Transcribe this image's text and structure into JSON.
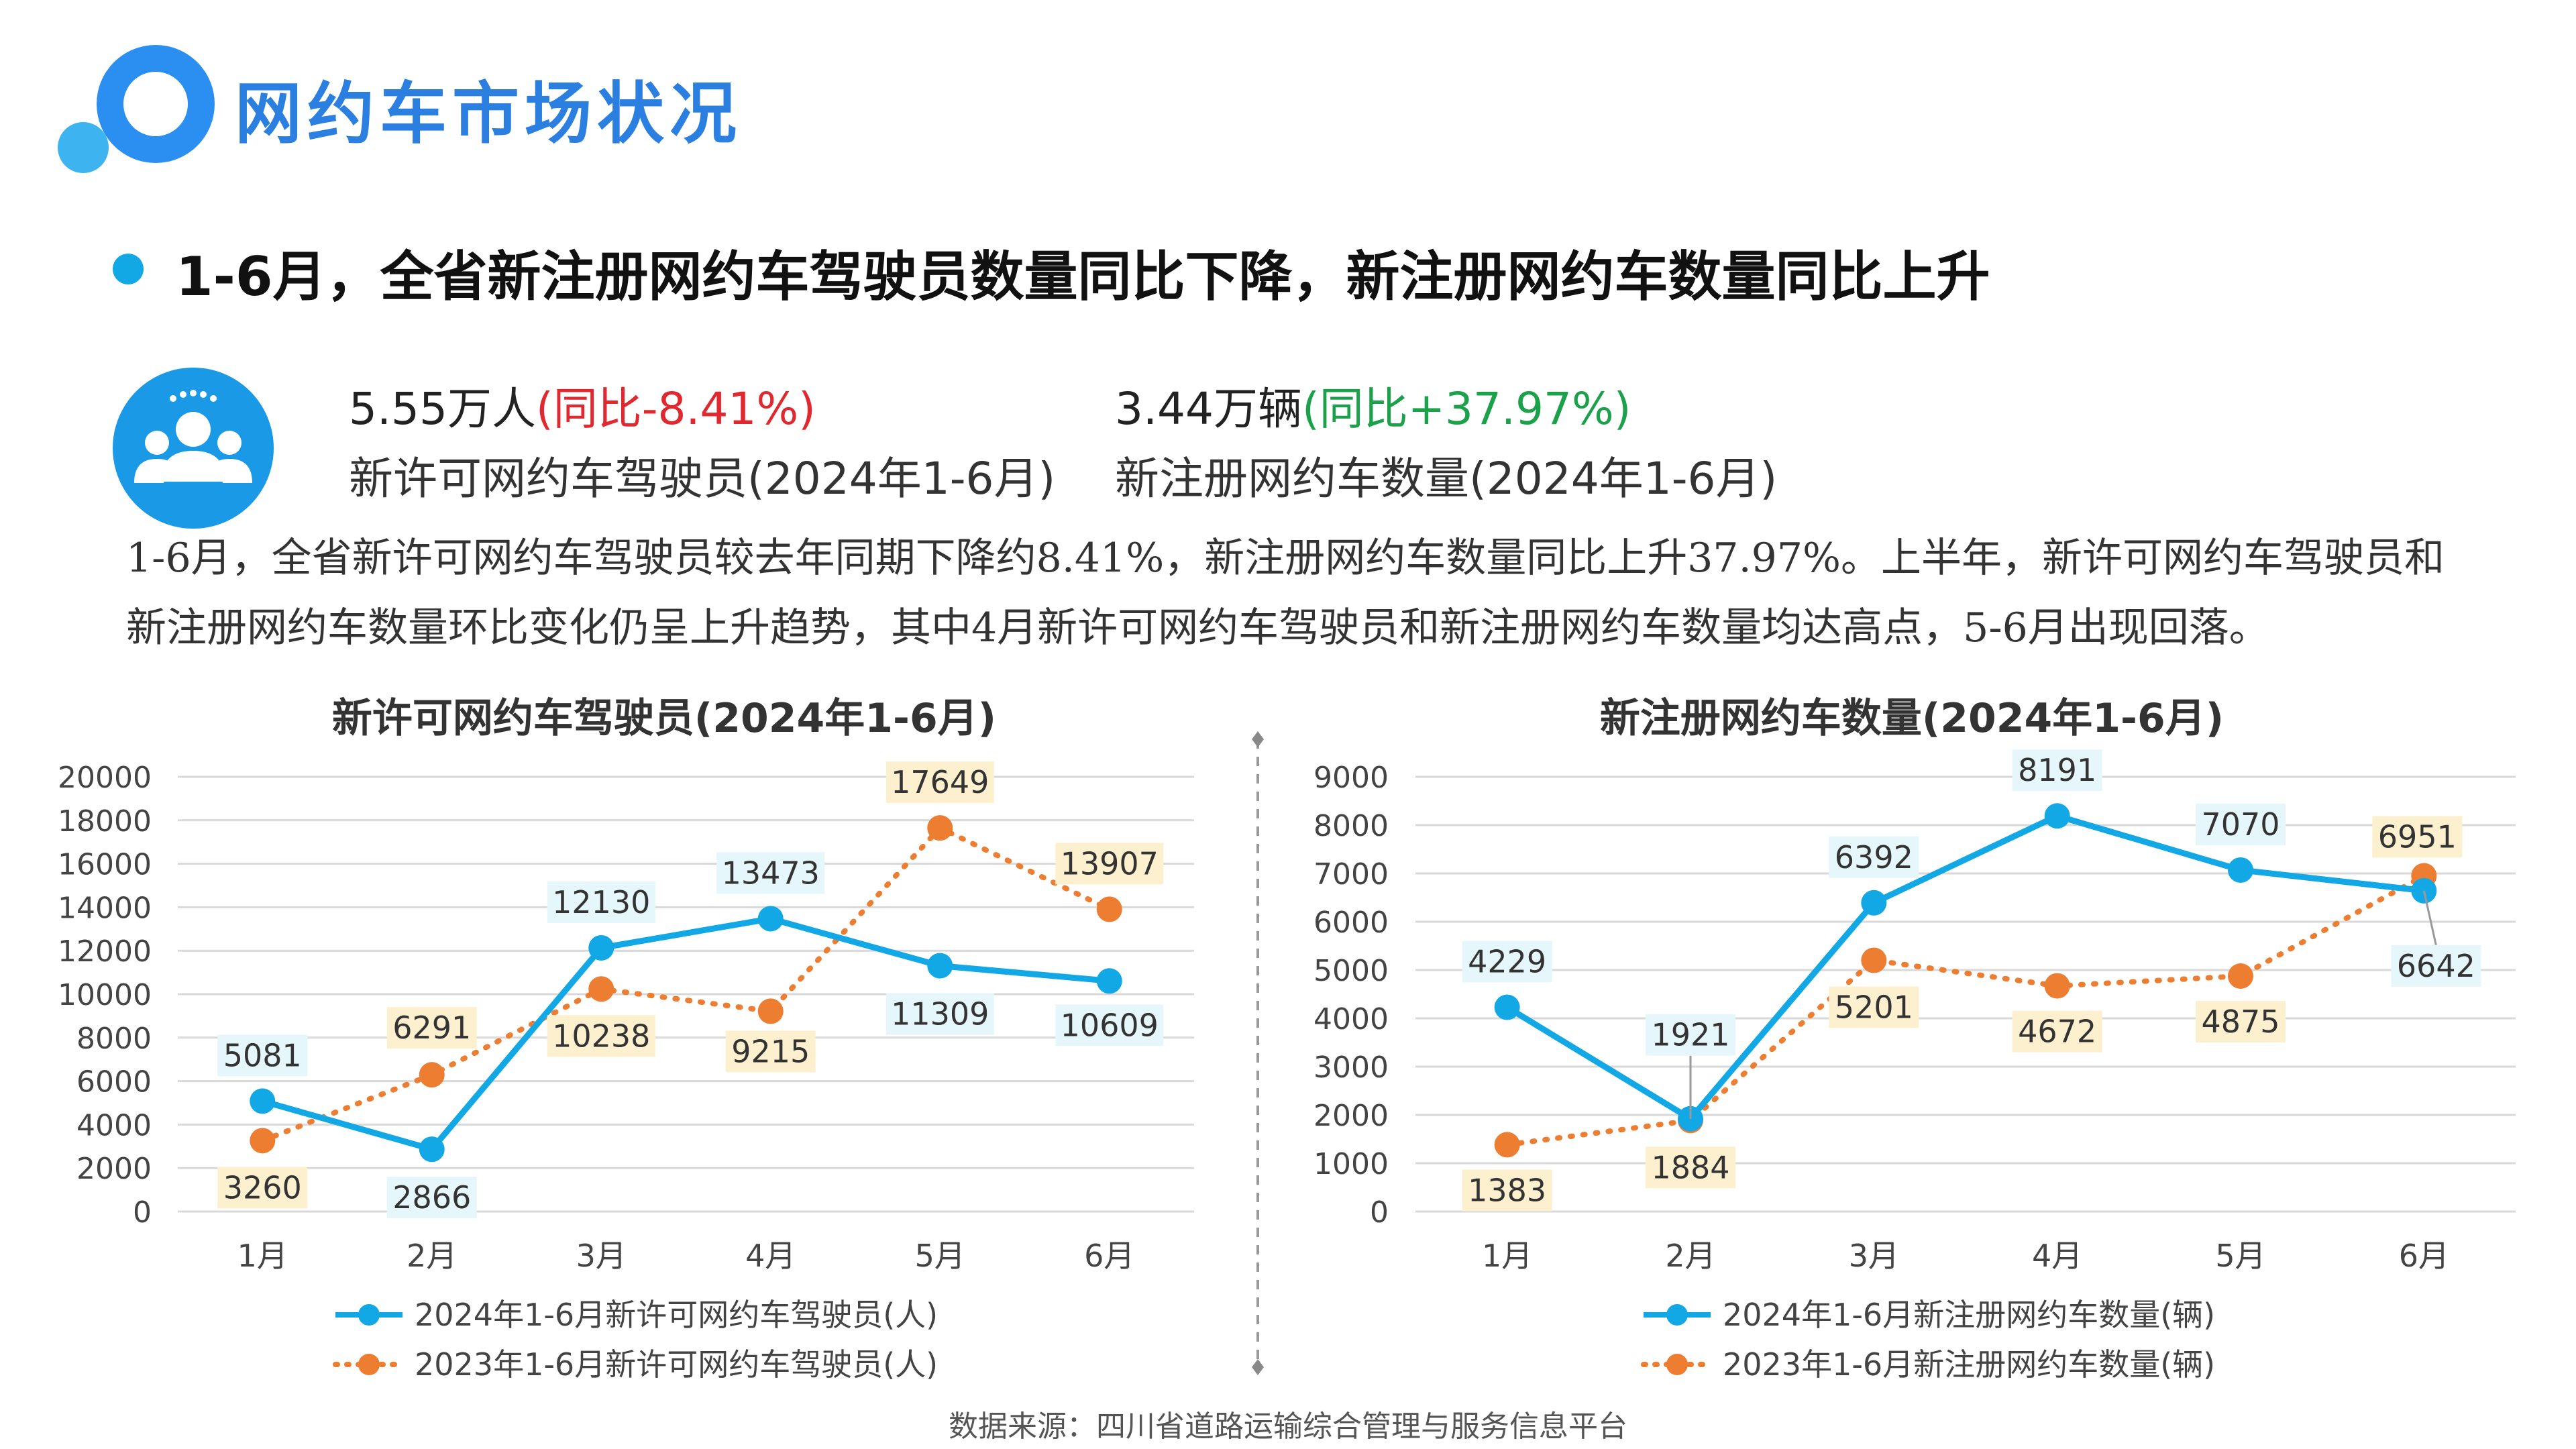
{
  "page": {
    "title": "网约车市场状况",
    "headline": "1-6月，全省新注册网约车驾驶员数量同比下降，新注册网约车数量同比上升",
    "stat_left": {
      "value": "5.55万人",
      "change": "(同比-8.41%)",
      "label": "新许可网约车驾驶员(2024年1-6月)"
    },
    "stat_right": {
      "value": "3.44万辆",
      "change": "(同比+37.97%)",
      "label": "新注册网约车数量(2024年1-6月)"
    },
    "summary": "1-6月，全省新许可网约车驾驶员较去年同期下降约8.41%，新注册网约车数量同比上升37.97%。上半年，新许可网约车驾驶员和新注册网约车数量环比变化仍呈上升趋势，其中4月新许可网约车驾驶员和新注册网约车数量均达高点，5-6月出现回落。",
    "source": "数据来源：四川省道路运输综合管理与服务信息平台"
  },
  "colors": {
    "blue": "#12a8e6",
    "orange": "#ed7d31",
    "blue_label_bg": "#e6f7fc",
    "orange_label_bg": "#fdf0cf",
    "title_blue": "#2a7fe0"
  },
  "chart_data": [
    {
      "type": "line",
      "title": "新许可网约车驾驶员(2024年1-6月)",
      "categories": [
        "1月",
        "2月",
        "3月",
        "4月",
        "5月",
        "6月"
      ],
      "ylim": [
        0,
        20000
      ],
      "yticks": [
        0,
        2000,
        4000,
        6000,
        8000,
        10000,
        12000,
        14000,
        16000,
        18000,
        20000
      ],
      "grid": true,
      "legend": "bottom",
      "series": [
        {
          "name": "2024年1-6月新许可网约车驾驶员(人)",
          "values": [
            5081,
            2866,
            12130,
            13473,
            11309,
            10609
          ],
          "style": "solid"
        },
        {
          "name": "2023年1-6月新许可网约车驾驶员(人)",
          "values": [
            3260,
            6291,
            10238,
            9215,
            17649,
            13907
          ],
          "style": "dotted"
        }
      ]
    },
    {
      "type": "line",
      "title": "新注册网约车数量(2024年1-6月)",
      "categories": [
        "1月",
        "2月",
        "3月",
        "4月",
        "5月",
        "6月"
      ],
      "ylim": [
        0,
        9000
      ],
      "yticks": [
        0,
        1000,
        2000,
        3000,
        4000,
        5000,
        6000,
        7000,
        8000,
        9000
      ],
      "grid": true,
      "legend": "bottom",
      "series": [
        {
          "name": "2024年1-6月新注册网约车数量(辆)",
          "values": [
            4229,
            1921,
            6392,
            8191,
            7070,
            6642
          ],
          "style": "solid"
        },
        {
          "name": "2023年1-6月新注册网约车数量(辆)",
          "values": [
            1383,
            1884,
            5201,
            4672,
            4875,
            6951
          ],
          "style": "dotted"
        }
      ]
    }
  ]
}
